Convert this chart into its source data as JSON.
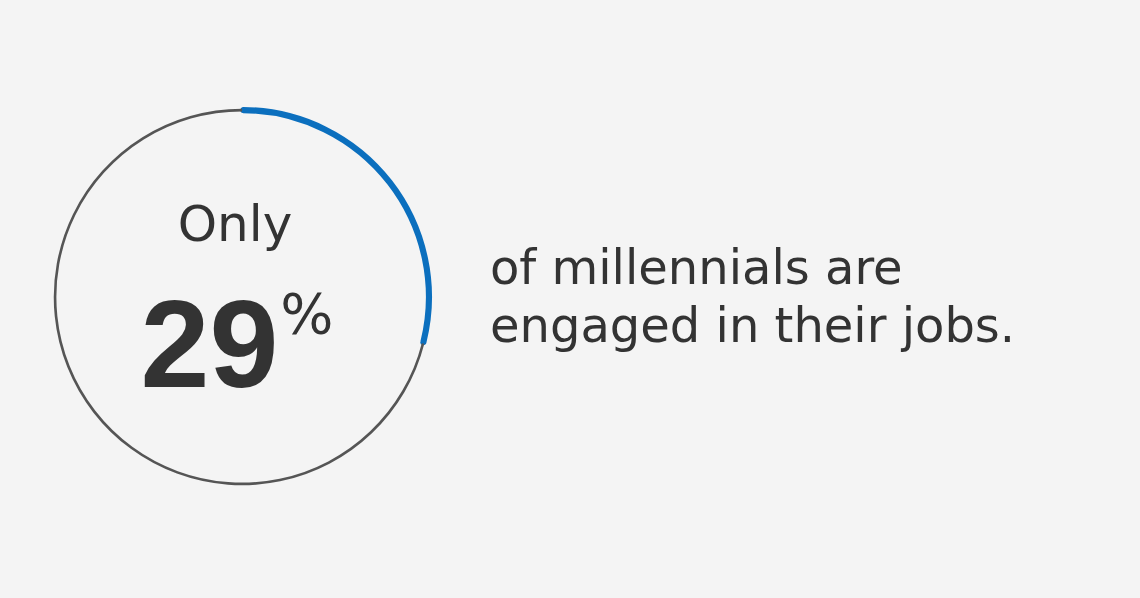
{
  "chart_data": {
    "type": "donut",
    "categories": [
      null,
      null
    ],
    "values": [
      29,
      71
    ],
    "colors": [
      "#0b6fbe",
      "#555555"
    ],
    "annotations": [
      "Only",
      "29%"
    ],
    "subtitle": "of millennials are engaged in their jobs."
  }
}
